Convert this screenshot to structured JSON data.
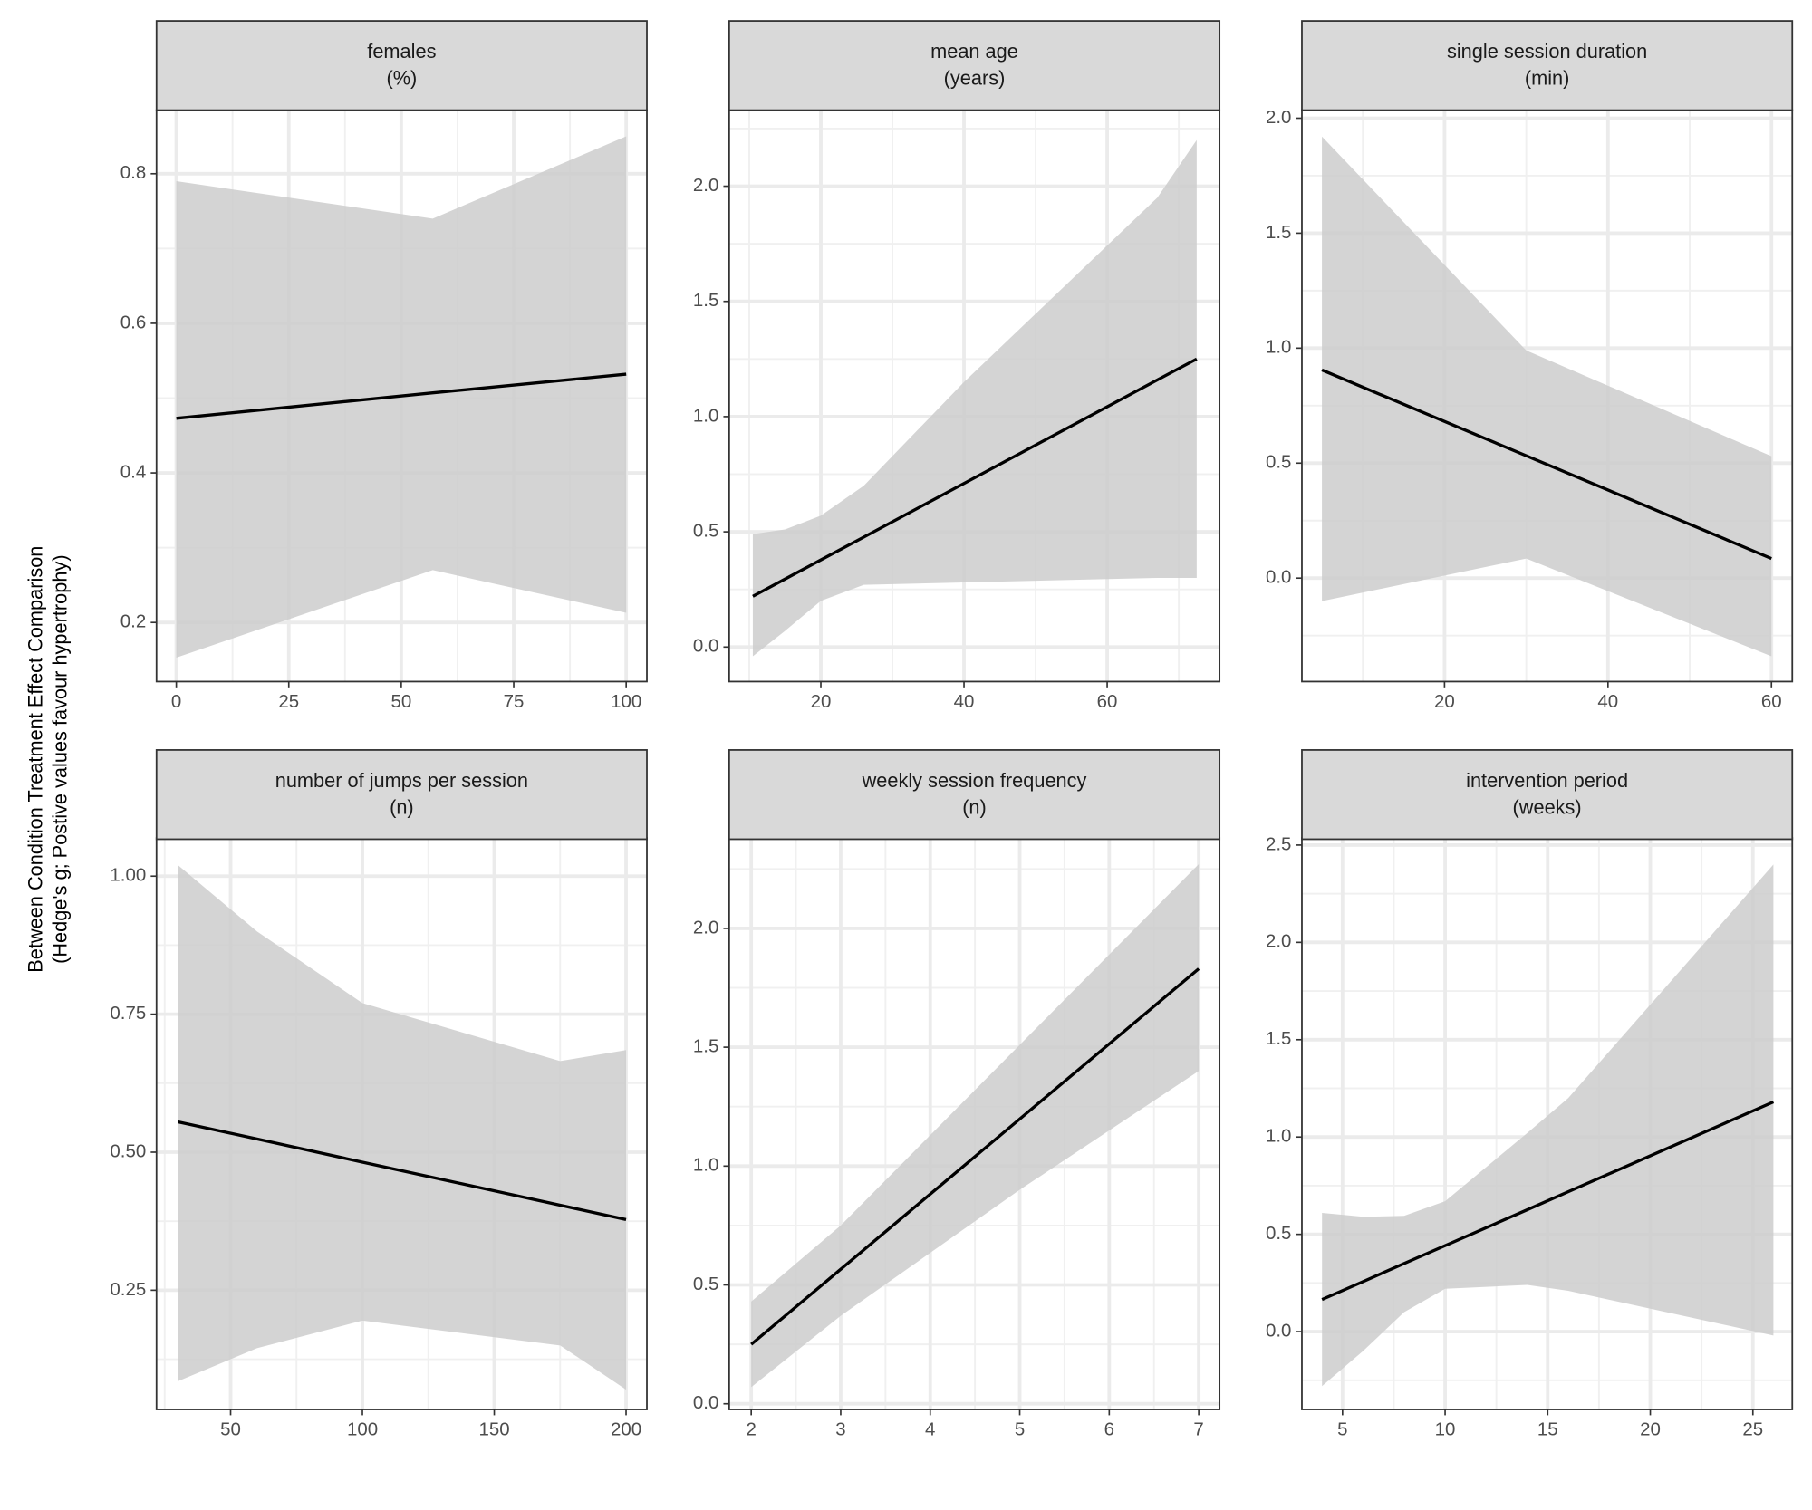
{
  "y_label": [
    "Between Condition Treatment Effect Comparison",
    "(Hedge's g; Postive values favour hypertrophy)"
  ],
  "chart_data": [
    {
      "type": "line",
      "title": "females",
      "subtitle": "(%)",
      "color": "#000000",
      "band_color": "#cccccc",
      "grid": true,
      "x": [
        0,
        57,
        100
      ],
      "values": [
        0.473,
        0.507,
        0.532
      ],
      "lower": [
        0.153,
        0.27,
        0.213
      ],
      "upper": [
        0.79,
        0.74,
        0.85
      ],
      "xlim": [
        -4.4,
        104.6
      ],
      "ylim": [
        0.121,
        0.885
      ],
      "xticks": [
        0,
        25,
        50,
        75,
        100
      ],
      "yticks": [
        0.2,
        0.4,
        0.6,
        0.8
      ]
    },
    {
      "type": "line",
      "title": "mean age",
      "subtitle": "(years)",
      "color": "#000000",
      "band_color": "#cccccc",
      "grid": true,
      "x": [
        10.5,
        15,
        20,
        26,
        40,
        67,
        72.5
      ],
      "values": [
        0.22,
        0.295,
        0.378,
        0.477,
        0.71,
        1.159,
        1.25
      ],
      "lower": [
        -0.04,
        0.07,
        0.2,
        0.27,
        0.28,
        0.3,
        0.3
      ],
      "upper": [
        0.49,
        0.51,
        0.57,
        0.7,
        1.15,
        1.95,
        2.2
      ],
      "xlim": [
        7.2,
        75.7
      ],
      "ylim": [
        -0.15,
        2.33
      ],
      "xticks": [
        20,
        40,
        60
      ],
      "yticks": [
        {
          "value": 0,
          "label": "0.0"
        },
        0.5,
        {
          "value": 1,
          "label": "1.0"
        },
        1.5,
        {
          "value": 2,
          "label": "2.0"
        }
      ]
    },
    {
      "type": "line",
      "title": "single session duration",
      "subtitle": "(min)",
      "color": "#000000",
      "band_color": "#cccccc",
      "grid": true,
      "x": [
        5,
        30,
        60
      ],
      "values": [
        0.905,
        0.532,
        0.085
      ],
      "lower": [
        -0.1,
        0.085,
        -0.34
      ],
      "upper": [
        1.92,
        0.99,
        0.53
      ],
      "xlim": [
        2.55,
        62.55
      ],
      "ylim": [
        -0.45,
        2.035
      ],
      "xticks": [
        20,
        40,
        60
      ],
      "yticks": [
        {
          "value": 0,
          "label": "0.0"
        },
        0.5,
        {
          "value": 1,
          "label": "1.0"
        },
        1.5,
        {
          "value": 2,
          "label": "2.0"
        }
      ]
    },
    {
      "type": "line",
      "title": "number of jumps per session",
      "subtitle": "(n)",
      "color": "#000000",
      "band_color": "#cccccc",
      "grid": true,
      "x": [
        30,
        60,
        100,
        175,
        200
      ],
      "values": [
        0.555,
        0.524,
        0.482,
        0.404,
        0.378
      ],
      "lower": [
        0.085,
        0.145,
        0.195,
        0.15,
        0.07
      ],
      "upper": [
        1.02,
        0.9,
        0.77,
        0.665,
        0.685
      ],
      "xlim": [
        21.9,
        207.9
      ],
      "ylim": [
        0.034,
        1.069
      ],
      "xticks": [
        50,
        100,
        150,
        200
      ],
      "yticks": [
        0.25,
        {
          "value": 0.5,
          "label": "0.50"
        },
        0.75,
        {
          "value": 1,
          "label": "1.00"
        }
      ]
    },
    {
      "type": "line",
      "title": "weekly session frequency",
      "subtitle": "(n)",
      "color": "#000000",
      "band_color": "#cccccc",
      "grid": true,
      "x": [
        2,
        3,
        5,
        7
      ],
      "values": [
        0.25,
        0.566,
        1.198,
        1.83
      ],
      "lower": [
        0.07,
        0.37,
        0.9,
        1.4
      ],
      "upper": [
        0.43,
        0.75,
        1.51,
        2.27
      ],
      "xlim": [
        1.754,
        7.233
      ],
      "ylim": [
        -0.024,
        2.38
      ],
      "xticks": [
        2,
        3,
        4,
        5,
        6,
        7
      ],
      "yticks": [
        {
          "value": 0,
          "label": "0.0"
        },
        0.5,
        {
          "value": 1,
          "label": "1.0"
        },
        1.5,
        {
          "value": 2,
          "label": "2.0"
        }
      ]
    },
    {
      "type": "line",
      "title": "intervention period",
      "subtitle": "(weeks)",
      "color": "#000000",
      "band_color": "#cccccc",
      "grid": true,
      "x": [
        4,
        6,
        8,
        10,
        14,
        16,
        26
      ],
      "values": [
        0.165,
        0.257,
        0.35,
        0.442,
        0.626,
        0.719,
        1.18
      ],
      "lower": [
        -0.28,
        -0.1,
        0.1,
        0.22,
        0.24,
        0.21,
        -0.02
      ],
      "upper": [
        0.61,
        0.59,
        0.595,
        0.67,
        1.02,
        1.2,
        2.4
      ],
      "xlim": [
        3.02,
        26.92
      ],
      "ylim": [
        -0.4,
        2.536
      ],
      "xticks": [
        5,
        10,
        15,
        20,
        25
      ],
      "yticks": [
        {
          "value": 0,
          "label": "0.0"
        },
        0.5,
        {
          "value": 1,
          "label": "1.0"
        },
        1.5,
        {
          "value": 2,
          "label": "2.0"
        },
        2.5
      ]
    }
  ]
}
